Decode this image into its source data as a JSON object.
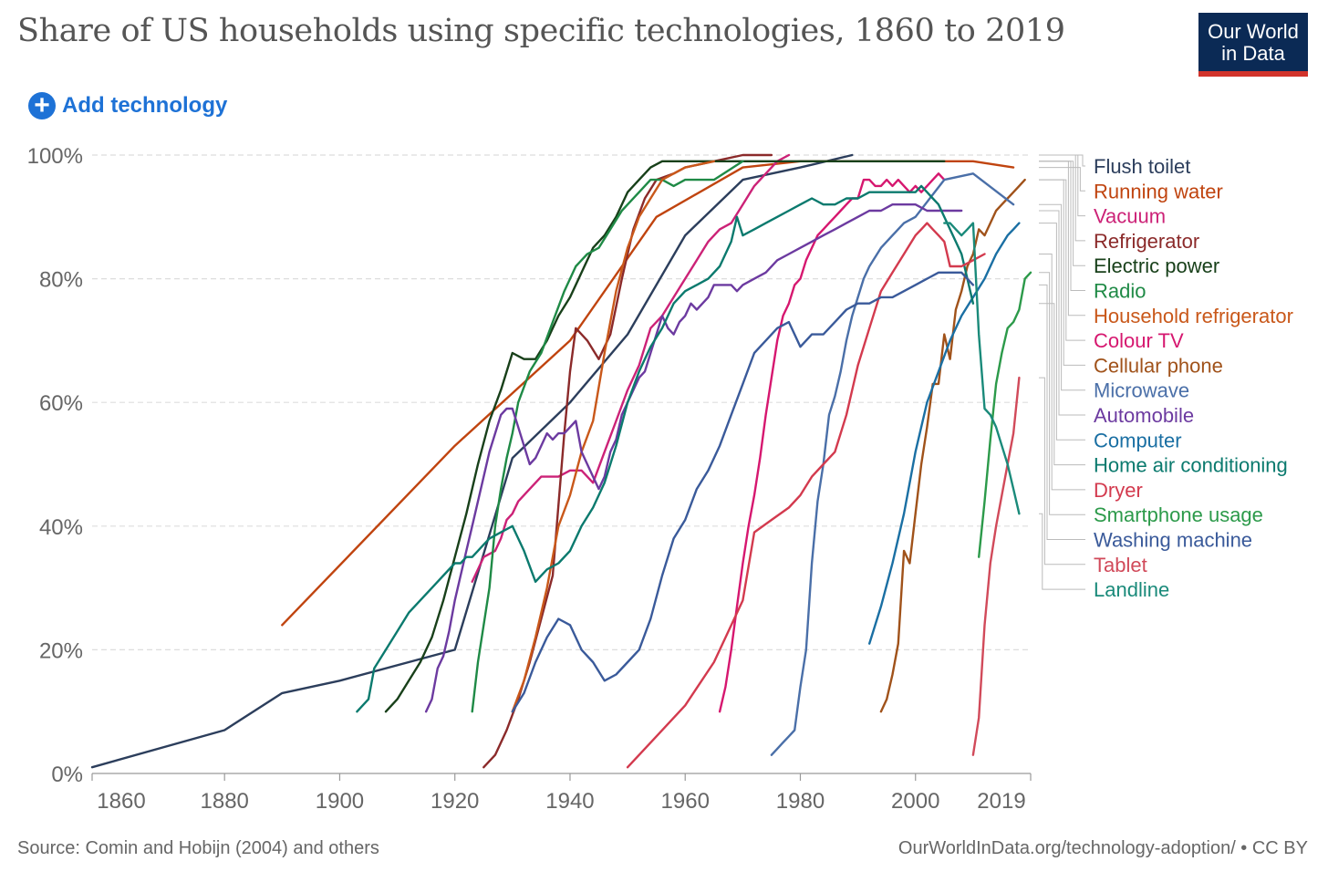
{
  "header": {
    "title": "Share of US households using specific technologies, 1860 to 2019",
    "logo_line1": "Our World",
    "logo_line2": "in Data",
    "add_button_label": "Add technology"
  },
  "footer": {
    "source": "Source: Comin and Hobijn (2004) and others",
    "url": "OurWorldInData.org/technology-adoption/ • CC BY"
  },
  "chart_data": {
    "type": "line",
    "title": "Share of US households using specific technologies, 1860 to 2019",
    "xlim": [
      1857,
      2020
    ],
    "ylim": [
      0,
      100
    ],
    "x_ticks": [
      1860,
      1880,
      1900,
      1920,
      1940,
      1960,
      1980,
      2000,
      2019
    ],
    "x_tick_labels": [
      "1860",
      "1880",
      "1900",
      "1920",
      "1940",
      "1960",
      "1980",
      "2000",
      "2019"
    ],
    "y_ticks": [
      0,
      20,
      40,
      60,
      80,
      100
    ],
    "y_tick_labels": [
      "0%",
      "20%",
      "40%",
      "60%",
      "80%",
      "100%"
    ],
    "grid": "horizontal dashed",
    "legend_position": "right",
    "series": [
      {
        "name": "Flush toilet",
        "color": "#2c3e5c",
        "x": [
          1857,
          1880,
          1890,
          1900,
          1920,
          1930,
          1940,
          1950,
          1960,
          1970,
          1980,
          1989
        ],
        "y": [
          1,
          7,
          13,
          15,
          20,
          51,
          60,
          71,
          87,
          96,
          98,
          100
        ]
      },
      {
        "name": "Running water",
        "color": "#c0440f",
        "x": [
          1890,
          1920,
          1940,
          1955,
          1970,
          1980,
          1990,
          2000,
          2010,
          2017
        ],
        "y": [
          24,
          53,
          70,
          90,
          98,
          99,
          99,
          99,
          99,
          98
        ]
      },
      {
        "name": "Vacuum",
        "color": "#cc2277",
        "x": [
          1923,
          1925,
          1927,
          1928,
          1929,
          1930,
          1931,
          1933,
          1935,
          1937,
          1938,
          1940,
          1942,
          1944,
          1946,
          1948,
          1950,
          1952,
          1954,
          1956,
          1958,
          1960,
          1962,
          1964,
          1966,
          1968,
          1970,
          1972,
          1974,
          1976,
          1978
        ],
        "y": [
          31,
          35,
          36,
          38,
          41,
          42,
          44,
          46,
          48,
          48,
          48,
          49,
          49,
          47,
          52,
          57,
          62,
          66,
          72,
          74,
          77,
          80,
          83,
          86,
          88,
          89,
          92,
          95,
          97,
          99,
          100
        ]
      },
      {
        "name": "Refrigerator",
        "color": "#8b2a2a",
        "x": [
          1925,
          1927,
          1929,
          1931,
          1933,
          1935,
          1937,
          1939,
          1940,
          1941,
          1943,
          1945,
          1947,
          1949,
          1951,
          1953,
          1955,
          1958,
          1960,
          1965,
          1970,
          1975
        ],
        "y": [
          1,
          3,
          7,
          12,
          18,
          25,
          32,
          55,
          65,
          72,
          70,
          67,
          71,
          80,
          88,
          93,
          96,
          97,
          98,
          99,
          100,
          100
        ]
      },
      {
        "name": "Electric power",
        "color": "#18401a",
        "x": [
          1908,
          1910,
          1912,
          1914,
          1916,
          1918,
          1920,
          1922,
          1924,
          1926,
          1928,
          1930,
          1932,
          1934,
          1936,
          1938,
          1940,
          1942,
          1944,
          1946,
          1948,
          1950,
          1952,
          1954,
          1956,
          1960,
          1970,
          1980,
          1990,
          2000,
          2005
        ],
        "y": [
          10,
          12,
          15,
          18,
          22,
          28,
          35,
          42,
          50,
          57,
          62,
          68,
          67,
          67,
          70,
          74,
          77,
          81,
          85,
          87,
          90,
          94,
          96,
          98,
          99,
          99,
          99,
          99,
          99,
          99,
          99
        ]
      },
      {
        "name": "Radio",
        "color": "#1f8a46",
        "x": [
          1923,
          1924,
          1926,
          1927,
          1928,
          1929,
          1930,
          1931,
          1933,
          1935,
          1937,
          1939,
          1941,
          1943,
          1945,
          1947,
          1949,
          1950,
          1952,
          1954,
          1956,
          1958,
          1960,
          1965,
          1970
        ],
        "y": [
          10,
          18,
          30,
          40,
          46,
          51,
          55,
          60,
          65,
          68,
          73,
          78,
          82,
          84,
          85,
          88,
          91,
          92,
          94,
          96,
          96,
          95,
          96,
          96,
          99
        ]
      },
      {
        "name": "Household refrigerator",
        "color": "#c9581a",
        "x": [
          1930,
          1932,
          1934,
          1936,
          1938,
          1940,
          1942,
          1944,
          1946,
          1948,
          1950,
          1952,
          1954,
          1956,
          1960,
          1965
        ],
        "y": [
          10,
          15,
          22,
          30,
          40,
          45,
          52,
          57,
          68,
          78,
          85,
          90,
          93,
          96,
          98,
          99
        ]
      },
      {
        "name": "Colour TV",
        "color": "#d6176f",
        "x": [
          1966,
          1967,
          1968,
          1969,
          1970,
          1971,
          1972,
          1973,
          1974,
          1975,
          1976,
          1977,
          1978,
          1979,
          1980,
          1981,
          1982,
          1983,
          1984,
          1985,
          1986,
          1987,
          1988,
          1989,
          1990,
          1991,
          1992,
          1993,
          1994,
          1995,
          1996,
          1997,
          1998,
          1999,
          2000,
          2001,
          2002,
          2003,
          2004,
          2005
        ],
        "y": [
          10,
          14,
          20,
          27,
          34,
          40,
          45,
          51,
          58,
          64,
          70,
          74,
          76,
          79,
          80,
          83,
          85,
          87,
          88,
          89,
          90,
          91,
          92,
          93,
          93,
          96,
          96,
          95,
          95,
          96,
          95,
          96,
          95,
          94,
          95,
          94,
          95,
          96,
          97,
          96
        ]
      },
      {
        "name": "Cellular phone",
        "color": "#a0521a",
        "x": [
          1994,
          1995,
          1996,
          1997,
          1998,
          1999,
          2000,
          2001,
          2002,
          2003,
          2004,
          2005,
          2006,
          2007,
          2008,
          2009,
          2010,
          2011,
          2012,
          2013,
          2014,
          2015,
          2016,
          2017,
          2018,
          2019
        ],
        "y": [
          10,
          12,
          16,
          21,
          36,
          34,
          42,
          50,
          56,
          63,
          63,
          71,
          67,
          75,
          78,
          82,
          84,
          88,
          87,
          89,
          91,
          92,
          93,
          94,
          95,
          96
        ]
      },
      {
        "name": "Microwave",
        "color": "#4a6fa8",
        "x": [
          1975,
          1976,
          1977,
          1978,
          1979,
          1980,
          1981,
          1982,
          1983,
          1984,
          1985,
          1986,
          1987,
          1988,
          1989,
          1990,
          1991,
          1992,
          1994,
          1996,
          1998,
          2000,
          2005,
          2010,
          2017
        ],
        "y": [
          3,
          4,
          5,
          6,
          7,
          14,
          20,
          34,
          44,
          50,
          58,
          61,
          65,
          70,
          74,
          77,
          80,
          82,
          85,
          87,
          89,
          90,
          96,
          97,
          92
        ]
      },
      {
        "name": "Automobile",
        "color": "#6c3aa0",
        "x": [
          1915,
          1916,
          1917,
          1918,
          1919,
          1920,
          1921,
          1922,
          1923,
          1924,
          1925,
          1926,
          1927,
          1928,
          1929,
          1930,
          1931,
          1932,
          1933,
          1934,
          1935,
          1936,
          1937,
          1938,
          1939,
          1940,
          1941,
          1942,
          1943,
          1944,
          1945,
          1946,
          1947,
          1948,
          1949,
          1950,
          1951,
          1952,
          1953,
          1954,
          1955,
          1956,
          1957,
          1958,
          1959,
          1960,
          1961,
          1962,
          1963,
          1964,
          1965,
          1966,
          1967,
          1968,
          1969,
          1970,
          1972,
          1974,
          1976,
          1978,
          1980,
          1982,
          1984,
          1986,
          1988,
          1990,
          1992,
          1994,
          1996,
          1998,
          2000,
          2002,
          2004,
          2006,
          2008
        ],
        "y": [
          10,
          12,
          17,
          19,
          23,
          28,
          32,
          36,
          40,
          44,
          48,
          52,
          55,
          58,
          59,
          59,
          56,
          53,
          50,
          51,
          53,
          55,
          54,
          55,
          55,
          56,
          57,
          52,
          50,
          48,
          46,
          48,
          52,
          54,
          58,
          60,
          62,
          64,
          65,
          68,
          71,
          74,
          72,
          71,
          73,
          74,
          76,
          75,
          76,
          77,
          79,
          79,
          79,
          79,
          78,
          79,
          80,
          81,
          83,
          84,
          85,
          86,
          87,
          88,
          89,
          90,
          91,
          91,
          92,
          92,
          92,
          91,
          91,
          91,
          91
        ]
      },
      {
        "name": "Computer",
        "color": "#1a6fa3",
        "x": [
          1992,
          1994,
          1996,
          1998,
          2000,
          2002,
          2004,
          2006,
          2008,
          2010,
          2012,
          2014,
          2016,
          2017,
          2018
        ],
        "y": [
          21,
          27,
          34,
          42,
          52,
          60,
          65,
          70,
          74,
          77,
          80,
          84,
          87,
          88,
          89
        ]
      },
      {
        "name": "Home air conditioning",
        "color": "#0b7a6e",
        "x": [
          1903,
          1905,
          1906,
          1908,
          1910,
          1912,
          1914,
          1916,
          1918,
          1920,
          1921,
          1922,
          1923,
          1924,
          1925,
          1926,
          1928,
          1930,
          1932,
          1934,
          1936,
          1938,
          1940,
          1942,
          1944,
          1946,
          1948,
          1950,
          1952,
          1954,
          1956,
          1958,
          1960,
          1962,
          1964,
          1966,
          1968,
          1969,
          1970,
          1972,
          1974,
          1976,
          1978,
          1980,
          1982,
          1984,
          1986,
          1988,
          1990,
          1992,
          1994,
          1996,
          1998,
          2000,
          2001,
          2002,
          2003,
          2004,
          2005,
          2006,
          2007,
          2008,
          2009,
          2010
        ],
        "y": [
          10,
          12,
          17,
          20,
          23,
          26,
          28,
          30,
          32,
          34,
          34,
          35,
          35,
          36,
          37,
          38,
          39,
          40,
          36,
          31,
          33,
          34,
          36,
          40,
          43,
          47,
          53,
          60,
          65,
          69,
          72,
          76,
          78,
          79,
          80,
          82,
          86,
          90,
          87,
          88,
          89,
          90,
          91,
          92,
          93,
          92,
          92,
          93,
          93,
          94,
          94,
          94,
          94,
          94,
          95,
          94,
          93,
          92,
          90,
          88,
          86,
          84,
          80,
          76
        ]
      },
      {
        "name": "Dryer",
        "color": "#d33a4e",
        "x": [
          1950,
          1955,
          1960,
          1965,
          1970,
          1972,
          1975,
          1978,
          1980,
          1982,
          1984,
          1986,
          1988,
          1990,
          1992,
          1994,
          1996,
          1998,
          2000,
          2001,
          2002,
          2003,
          2004,
          2005,
          2006,
          2008,
          2010,
          2012
        ],
        "y": [
          1,
          6,
          11,
          18,
          28,
          39,
          41,
          43,
          45,
          48,
          50,
          52,
          58,
          66,
          72,
          78,
          81,
          84,
          87,
          88,
          89,
          88,
          87,
          86,
          82,
          82,
          83,
          84
        ]
      },
      {
        "name": "Smartphone usage",
        "color": "#2c9a4a",
        "x": [
          2011,
          2012,
          2013,
          2014,
          2015,
          2016,
          2017,
          2018,
          2019,
          2020
        ],
        "y": [
          35,
          44,
          54,
          63,
          68,
          72,
          73,
          75,
          80,
          81
        ]
      },
      {
        "name": "Washing machine",
        "color": "#3a5a9a",
        "x": [
          1930,
          1932,
          1934,
          1936,
          1938,
          1940,
          1942,
          1944,
          1946,
          1948,
          1950,
          1952,
          1954,
          1956,
          1958,
          1960,
          1962,
          1964,
          1966,
          1968,
          1970,
          1972,
          1974,
          1976,
          1978,
          1980,
          1982,
          1984,
          1986,
          1988,
          1990,
          1992,
          1994,
          1996,
          1998,
          2000,
          2002,
          2004,
          2006,
          2008,
          2010
        ],
        "y": [
          10,
          13,
          18,
          22,
          25,
          24,
          20,
          18,
          15,
          16,
          18,
          20,
          25,
          32,
          38,
          41,
          46,
          49,
          53,
          58,
          63,
          68,
          70,
          72,
          73,
          69,
          71,
          71,
          73,
          75,
          76,
          76,
          77,
          77,
          78,
          79,
          80,
          81,
          81,
          81,
          79
        ]
      },
      {
        "name": "Tablet",
        "color": "#d14a5a",
        "x": [
          2010,
          2011,
          2012,
          2013,
          2014,
          2015,
          2016,
          2017,
          2018
        ],
        "y": [
          3,
          9,
          24,
          34,
          40,
          45,
          50,
          55,
          64
        ]
      },
      {
        "name": "Landline",
        "color": "#1a8a7a",
        "x": [
          2005,
          2006,
          2007,
          2008,
          2009,
          2010,
          2011,
          2012,
          2013,
          2014,
          2015,
          2016,
          2017,
          2018
        ],
        "y": [
          89,
          89,
          88,
          87,
          88,
          89,
          71,
          59,
          58,
          56,
          53,
          50,
          46,
          42
        ]
      }
    ]
  }
}
